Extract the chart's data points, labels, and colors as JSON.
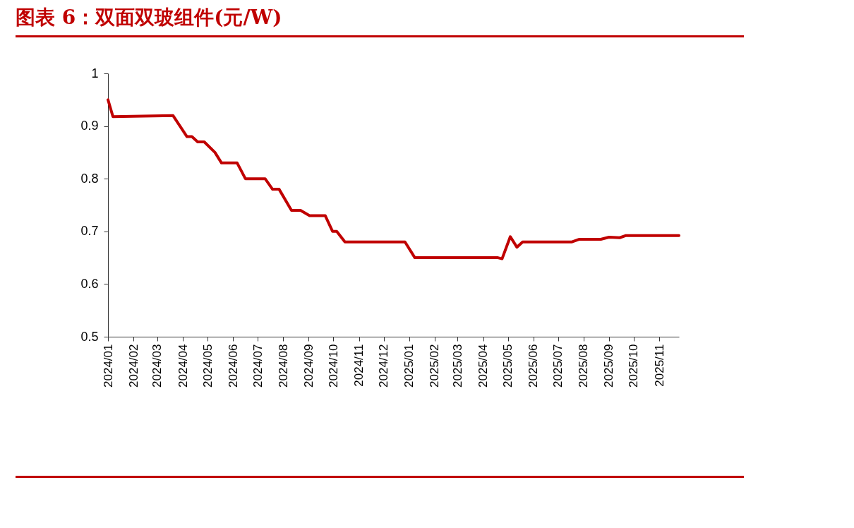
{
  "chart_data": {
    "type": "line",
    "title": "图表 6：双面双玻组件(元/W)",
    "x": [
      "2024-01-01",
      "2024-01-07",
      "2024-03-20",
      "2024-04-06",
      "2024-04-12",
      "2024-04-19",
      "2024-04-27",
      "2024-05-10",
      "2024-05-18",
      "2024-06-06",
      "2024-06-16",
      "2024-07-10",
      "2024-07-19",
      "2024-07-27",
      "2024-08-11",
      "2024-08-22",
      "2024-09-02",
      "2024-09-21",
      "2024-09-30",
      "2024-10-05",
      "2024-10-15",
      "2024-12-27",
      "2025-01-08",
      "2025-04-19",
      "2025-04-24",
      "2025-05-04",
      "2025-05-12",
      "2025-05-19",
      "2025-07-18",
      "2025-07-27",
      "2025-08-22",
      "2025-09-01",
      "2025-09-14",
      "2025-09-21",
      "2025-11-25"
    ],
    "series": [
      {
        "color": "#c00000",
        "values": [
          0.95,
          0.918,
          0.92,
          0.88,
          0.88,
          0.87,
          0.87,
          0.85,
          0.83,
          0.83,
          0.8,
          0.8,
          0.78,
          0.78,
          0.74,
          0.74,
          0.73,
          0.73,
          0.7,
          0.7,
          0.68,
          0.68,
          0.65,
          0.65,
          0.648,
          0.69,
          0.67,
          0.68,
          0.68,
          0.685,
          0.685,
          0.689,
          0.688,
          0.692,
          0.692
        ]
      }
    ],
    "xlim": [
      "2024-01-01",
      "2025-11-25"
    ],
    "xticks": [
      {
        "value": "2024-01-01",
        "label": "2024/01"
      },
      {
        "value": "2024-02-01",
        "label": "2024/02"
      },
      {
        "value": "2024-03-01",
        "label": "2024/03"
      },
      {
        "value": "2024-04-01",
        "label": "2024/04"
      },
      {
        "value": "2024-05-01",
        "label": "2024/05"
      },
      {
        "value": "2024-06-01",
        "label": "2024/06"
      },
      {
        "value": "2024-07-01",
        "label": "2024/07"
      },
      {
        "value": "2024-08-01",
        "label": "2024/08"
      },
      {
        "value": "2024-09-01",
        "label": "2024/09"
      },
      {
        "value": "2024-10-01",
        "label": "2024/10"
      },
      {
        "value": "2024-11-01",
        "label": "2024/11"
      },
      {
        "value": "2024-12-01",
        "label": "2024/12"
      },
      {
        "value": "2025-01-01",
        "label": "2025/01"
      },
      {
        "value": "2025-02-01",
        "label": "2025/02"
      },
      {
        "value": "2025-03-01",
        "label": "2025/03"
      },
      {
        "value": "2025-04-01",
        "label": "2025/04"
      },
      {
        "value": "2025-05-01",
        "label": "2025/05"
      },
      {
        "value": "2025-06-01",
        "label": "2025/06"
      },
      {
        "value": "2025-07-01",
        "label": "2025/07"
      },
      {
        "value": "2025-08-01",
        "label": "2025/08"
      },
      {
        "value": "2025-09-01",
        "label": "2025/09"
      },
      {
        "value": "2025-10-01",
        "label": "2025/10"
      },
      {
        "value": "2025-11-01",
        "label": "2025/11"
      }
    ],
    "ylim": [
      0.5,
      1
    ],
    "yticks": [
      0.5,
      0.6,
      0.7,
      0.8,
      0.9,
      {
        "value": 1,
        "label": "1"
      }
    ],
    "grid": false,
    "marker": "none",
    "line_style": "solid"
  }
}
